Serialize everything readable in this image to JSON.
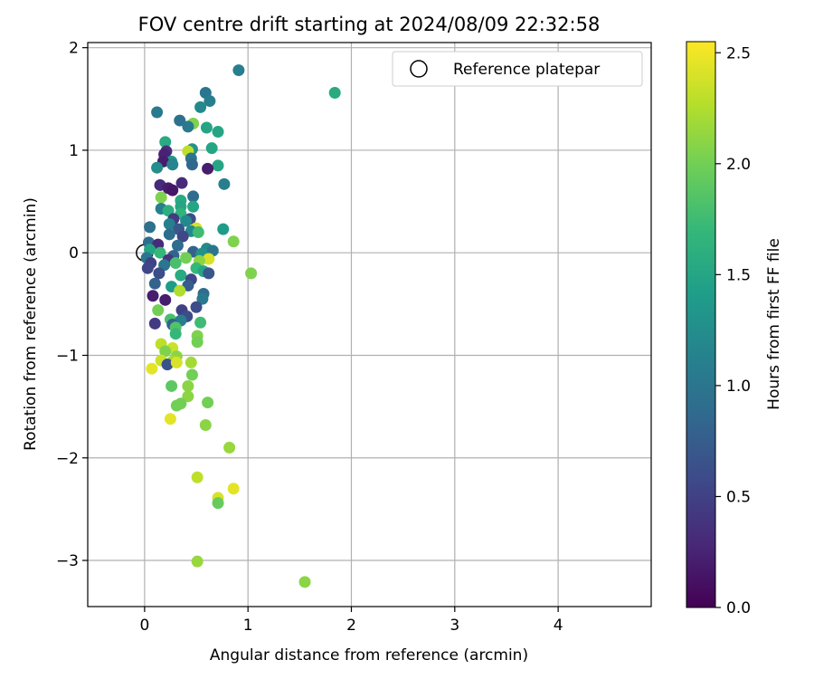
{
  "chart_data": {
    "type": "scatter",
    "title": "FOV centre drift starting at 2024/08/09 22:32:58",
    "xlabel": "Angular distance from reference (arcmin)",
    "ylabel": "Rotation from reference (arcmin)",
    "xlim": [
      -0.55,
      4.9
    ],
    "ylim": [
      -3.45,
      2.05
    ],
    "x_ticks": [
      0,
      1,
      2,
      3,
      4
    ],
    "x_tick_labels": [
      "0",
      "1",
      "2",
      "3",
      "4"
    ],
    "y_ticks": [
      2,
      1,
      0,
      -1,
      -2,
      -3
    ],
    "y_tick_labels": [
      "2",
      "1",
      "0",
      "−1",
      "−2",
      "−3"
    ],
    "grid": true,
    "legend": {
      "placement": "top-right",
      "entries": [
        {
          "label": "Reference platepar",
          "marker": "hollow-circle"
        }
      ]
    },
    "reference_point": {
      "x": 0,
      "y": 0
    },
    "colorbar": {
      "label": "Hours from first FF file",
      "colormap": "viridis",
      "range": [
        0.0,
        2.55
      ],
      "ticks": [
        0.0,
        0.5,
        1.0,
        1.5,
        2.0,
        2.5
      ],
      "tick_labels": [
        "0.0",
        "0.5",
        "1.0",
        "1.5",
        "2.0",
        "2.5"
      ]
    },
    "series": [
      {
        "columns": [
          "x",
          "y",
          "hours"
        ],
        "points": [
          [
            0.91,
            1.78,
            1.1
          ],
          [
            1.84,
            1.56,
            1.55
          ],
          [
            0.59,
            1.56,
            1.0
          ],
          [
            0.63,
            1.48,
            1.1
          ],
          [
            0.54,
            1.42,
            1.2
          ],
          [
            0.12,
            1.37,
            1.05
          ],
          [
            0.34,
            1.29,
            0.95
          ],
          [
            0.47,
            1.26,
            2.05
          ],
          [
            0.42,
            1.23,
            1.05
          ],
          [
            0.6,
            1.22,
            1.5
          ],
          [
            0.71,
            1.18,
            1.5
          ],
          [
            0.2,
            1.08,
            1.55
          ],
          [
            0.65,
            1.02,
            1.5
          ],
          [
            0.46,
            1.01,
            1.3
          ],
          [
            0.42,
            0.99,
            2.3
          ],
          [
            0.21,
            0.99,
            0.35
          ],
          [
            0.19,
            0.96,
            0.25
          ],
          [
            0.45,
            0.92,
            1.0
          ],
          [
            0.26,
            0.89,
            1.35
          ],
          [
            0.18,
            0.89,
            0.2
          ],
          [
            0.27,
            0.86,
            1.15
          ],
          [
            0.46,
            0.86,
            0.85
          ],
          [
            0.71,
            0.85,
            1.5
          ],
          [
            0.12,
            0.83,
            1.25
          ],
          [
            0.61,
            0.82,
            0.2
          ],
          [
            0.36,
            0.68,
            0.3
          ],
          [
            0.77,
            0.67,
            1.1
          ],
          [
            0.15,
            0.66,
            0.3
          ],
          [
            0.23,
            0.63,
            0.2
          ],
          [
            0.27,
            0.61,
            0.15
          ],
          [
            0.47,
            0.55,
            0.9
          ],
          [
            0.16,
            0.54,
            2.05
          ],
          [
            0.35,
            0.51,
            1.55
          ],
          [
            0.35,
            0.45,
            1.5
          ],
          [
            0.47,
            0.45,
            1.5
          ],
          [
            0.16,
            0.43,
            1.1
          ],
          [
            0.23,
            0.41,
            1.6
          ],
          [
            0.35,
            0.38,
            1.65
          ],
          [
            0.28,
            0.33,
            0.45
          ],
          [
            0.44,
            0.33,
            0.6
          ],
          [
            0.4,
            0.31,
            1.2
          ],
          [
            0.24,
            0.28,
            1.1
          ],
          [
            0.05,
            0.25,
            0.95
          ],
          [
            0.5,
            0.24,
            2.4
          ],
          [
            0.33,
            0.23,
            0.7
          ],
          [
            0.76,
            0.23,
            1.4
          ],
          [
            0.45,
            0.21,
            1.2
          ],
          [
            0.52,
            0.2,
            1.75
          ],
          [
            0.24,
            0.18,
            0.9
          ],
          [
            0.37,
            0.16,
            0.55
          ],
          [
            0.86,
            0.11,
            2.05
          ],
          [
            0.04,
            0.1,
            0.9
          ],
          [
            0.13,
            0.08,
            0.3
          ],
          [
            0.32,
            0.07,
            0.9
          ],
          [
            0.6,
            0.04,
            1.2
          ],
          [
            0.66,
            0.02,
            1.0
          ],
          [
            0.05,
            0.03,
            1.5
          ],
          [
            0.15,
            0.0,
            1.7
          ],
          [
            0.47,
            0.01,
            0.8
          ],
          [
            0.55,
            -0.01,
            1.3
          ],
          [
            0.28,
            -0.03,
            0.8
          ],
          [
            0.02,
            -0.05,
            1.0
          ],
          [
            0.4,
            -0.05,
            2.0
          ],
          [
            0.62,
            -0.06,
            2.4
          ],
          [
            0.53,
            -0.08,
            2.1
          ],
          [
            0.23,
            -0.07,
            0.4
          ],
          [
            0.06,
            -0.1,
            0.5
          ],
          [
            0.3,
            -0.1,
            1.8
          ],
          [
            0.19,
            -0.12,
            1.0
          ],
          [
            0.03,
            -0.15,
            0.55
          ],
          [
            0.5,
            -0.15,
            1.7
          ],
          [
            0.57,
            -0.18,
            1.5
          ],
          [
            0.62,
            -0.2,
            0.7
          ],
          [
            1.03,
            -0.2,
            2.05
          ],
          [
            0.14,
            -0.2,
            0.6
          ],
          [
            0.35,
            -0.22,
            1.55
          ],
          [
            0.45,
            -0.26,
            0.55
          ],
          [
            0.1,
            -0.3,
            0.8
          ],
          [
            0.26,
            -0.33,
            1.4
          ],
          [
            0.42,
            -0.32,
            0.75
          ],
          [
            0.34,
            -0.37,
            2.25
          ],
          [
            0.57,
            -0.4,
            0.9
          ],
          [
            0.08,
            -0.42,
            0.2
          ],
          [
            0.2,
            -0.46,
            0.2
          ],
          [
            0.56,
            -0.45,
            1.05
          ],
          [
            0.5,
            -0.53,
            0.6
          ],
          [
            0.36,
            -0.56,
            0.5
          ],
          [
            0.13,
            -0.56,
            2.0
          ],
          [
            0.41,
            -0.62,
            0.6
          ],
          [
            0.25,
            -0.65,
            1.8
          ],
          [
            0.35,
            -0.66,
            1.1
          ],
          [
            0.1,
            -0.69,
            0.45
          ],
          [
            0.27,
            -0.7,
            0.8
          ],
          [
            0.54,
            -0.68,
            1.75
          ],
          [
            0.3,
            -0.73,
            1.85
          ],
          [
            0.3,
            -0.79,
            1.7
          ],
          [
            0.51,
            -0.81,
            2.05
          ],
          [
            0.51,
            -0.87,
            2.0
          ],
          [
            0.16,
            -0.89,
            2.3
          ],
          [
            0.27,
            -0.93,
            2.35
          ],
          [
            0.2,
            -0.96,
            2.05
          ],
          [
            0.31,
            -1.01,
            2.1
          ],
          [
            0.16,
            -1.05,
            2.35
          ],
          [
            0.27,
            -1.06,
            2.2
          ],
          [
            0.45,
            -1.07,
            2.2
          ],
          [
            0.22,
            -1.09,
            0.65
          ],
          [
            0.31,
            -1.07,
            2.4
          ],
          [
            0.07,
            -1.13,
            2.45
          ],
          [
            0.46,
            -1.19,
            2.0
          ],
          [
            0.26,
            -1.3,
            1.9
          ],
          [
            0.42,
            -1.3,
            2.1
          ],
          [
            0.42,
            -1.4,
            2.1
          ],
          [
            0.61,
            -1.46,
            2.0
          ],
          [
            0.35,
            -1.47,
            2.0
          ],
          [
            0.31,
            -1.49,
            2.0
          ],
          [
            0.25,
            -1.62,
            2.45
          ],
          [
            0.59,
            -1.68,
            2.1
          ],
          [
            0.82,
            -1.9,
            2.15
          ],
          [
            0.51,
            -2.19,
            2.3
          ],
          [
            0.86,
            -2.3,
            2.45
          ],
          [
            0.71,
            -2.39,
            2.4
          ],
          [
            0.71,
            -2.44,
            1.95
          ],
          [
            0.51,
            -3.01,
            2.15
          ],
          [
            1.55,
            -3.21,
            2.1
          ]
        ]
      }
    ],
    "colors": {
      "grid": "#b0b0b0",
      "axes": "#000000",
      "reference_marker": "#000000",
      "background": "#ffffff"
    }
  }
}
